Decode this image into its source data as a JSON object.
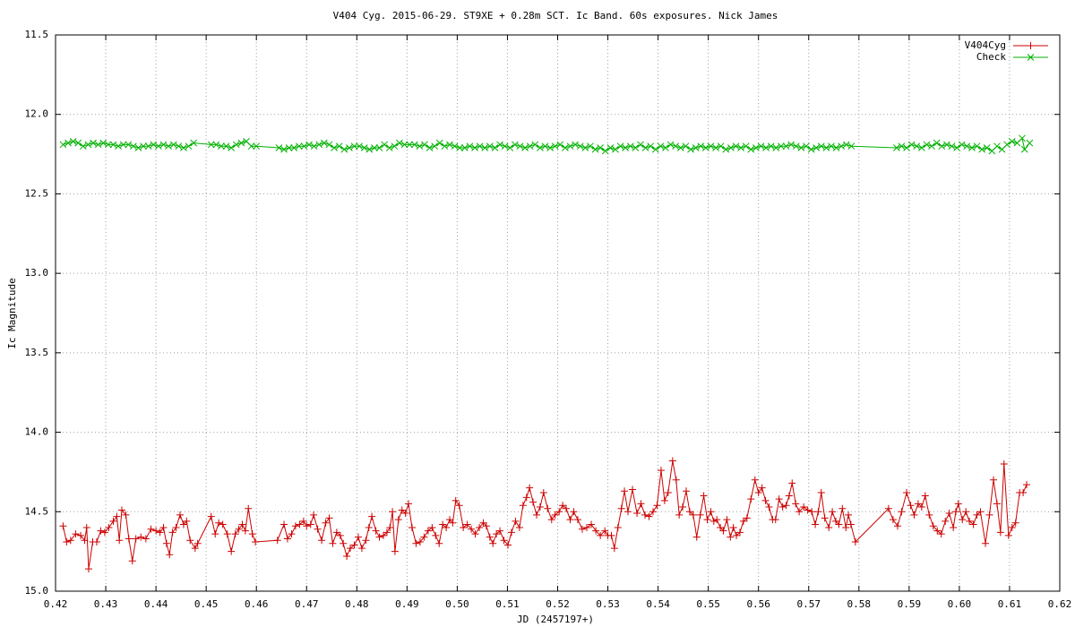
{
  "chart_data": {
    "type": "line",
    "title": "V404 Cyg. 2015-06-29. ST9XE + 0.28m SCT. Ic Band. 60s exposures. Nick James",
    "x_label": "JD (2457197+)",
    "y_label": "Ic Magnitude",
    "xlim": [
      0.42,
      0.62
    ],
    "ylim": [
      15.0,
      11.5
    ],
    "xticks": [
      0.42,
      0.43,
      0.44,
      0.45,
      0.46,
      0.47,
      0.48,
      0.49,
      {
        "value": 0.5,
        "label": "0.50"
      },
      0.51,
      0.52,
      0.53,
      0.54,
      0.55,
      0.56,
      0.57,
      0.58,
      0.59,
      {
        "value": 0.6,
        "label": "0.60"
      },
      0.61,
      0.62
    ],
    "yticks": [
      11.5,
      {
        "value": 12.0,
        "label": "12.0"
      },
      12.5,
      {
        "value": 13.0,
        "label": "13.0"
      },
      13.5,
      {
        "value": 14.0,
        "label": "14.0"
      },
      14.5,
      {
        "value": 15.0,
        "label": "15.0"
      }
    ],
    "grid": true,
    "legend": "top-right",
    "series": [
      {
        "name": "V404Cyg",
        "color": "#cc0000",
        "marker": "plus",
        "x": [
          0.4215,
          0.4222,
          0.423,
          0.424,
          0.425,
          0.4258,
          0.4262,
          0.4266,
          0.4274,
          0.4282,
          0.429,
          0.4298,
          0.4306,
          0.4315,
          0.4322,
          0.4327,
          0.4332,
          0.434,
          0.4346,
          0.4353,
          0.436,
          0.437,
          0.438,
          0.439,
          0.44,
          0.4408,
          0.4415,
          0.4421,
          0.4427,
          0.4433,
          0.444,
          0.4448,
          0.4455,
          0.4461,
          0.4468,
          0.4478,
          0.4483,
          0.451,
          0.4518,
          0.4525,
          0.4533,
          0.4542,
          0.455,
          0.4558,
          0.4565,
          0.4572,
          0.4578,
          0.4584,
          0.4592,
          0.4598,
          0.4642,
          0.4655,
          0.4662,
          0.467,
          0.4678,
          0.4686,
          0.4694,
          0.47,
          0.4708,
          0.4714,
          0.4722,
          0.473,
          0.4738,
          0.4745,
          0.4752,
          0.476,
          0.4767,
          0.4773,
          0.478,
          0.4787,
          0.4795,
          0.4803,
          0.481,
          0.4818,
          0.4824,
          0.483,
          0.4838,
          0.4845,
          0.4853,
          0.486,
          0.4866,
          0.4871,
          0.4876,
          0.4883,
          0.489,
          0.4897,
          0.4903,
          0.491,
          0.4918,
          0.4926,
          0.4934,
          0.4942,
          0.495,
          0.4957,
          0.4964,
          0.4971,
          0.4978,
          0.4985,
          0.4991,
          0.4997,
          0.5004,
          0.5012,
          0.502,
          0.5028,
          0.5036,
          0.5044,
          0.5052,
          0.5058,
          0.5065,
          0.5071,
          0.5078,
          0.5085,
          0.5093,
          0.5101,
          0.5108,
          0.5116,
          0.5124,
          0.5131,
          0.5138,
          0.5144,
          0.5151,
          0.5158,
          0.5165,
          0.5172,
          0.518,
          0.5188,
          0.5195,
          0.5203,
          0.521,
          0.5217,
          0.5225,
          0.5232,
          0.524,
          0.5249,
          0.5258,
          0.5267,
          0.5276,
          0.5285,
          0.5294,
          0.53,
          0.5307,
          0.5313,
          0.532,
          0.5327,
          0.5333,
          0.534,
          0.5349,
          0.5358,
          0.5366,
          0.5374,
          0.5382,
          0.539,
          0.5398,
          0.5406,
          0.5413,
          0.542,
          0.5429,
          0.5436,
          0.5442,
          0.5449,
          0.5456,
          0.5463,
          0.547,
          0.5477,
          0.5484,
          0.5491,
          0.5498,
          0.5505,
          0.5511,
          0.5517,
          0.5524,
          0.553,
          0.5537,
          0.5544,
          0.555,
          0.5556,
          0.5563,
          0.557,
          0.5577,
          0.5585,
          0.5593,
          0.56,
          0.5607,
          0.5614,
          0.5621,
          0.5628,
          0.5634,
          0.5641,
          0.5648,
          0.5655,
          0.5661,
          0.5667,
          0.5674,
          0.5681,
          0.569,
          0.5698,
          0.5706,
          0.5713,
          0.5719,
          0.5725,
          0.5732,
          0.574,
          0.5747,
          0.5754,
          0.576,
          0.5767,
          0.5774,
          0.5779,
          0.5784,
          0.5793,
          0.5859,
          0.5868,
          0.5877,
          0.5885,
          0.5895,
          0.5903,
          0.591,
          0.5918,
          0.5925,
          0.5932,
          0.594,
          0.5948,
          0.5956,
          0.5964,
          0.5972,
          0.598,
          0.5988,
          0.5993,
          0.5998,
          0.6006,
          0.6013,
          0.602,
          0.6028,
          0.6035,
          0.6042,
          0.6052,
          0.606,
          0.6068,
          0.6075,
          0.6082,
          0.6089,
          0.6098,
          0.6105,
          0.6112,
          0.612,
          0.6127,
          0.6134
        ],
        "values": [
          14.59,
          14.69,
          14.68,
          14.64,
          14.65,
          14.68,
          14.6,
          14.86,
          14.69,
          14.69,
          14.62,
          14.63,
          14.6,
          14.56,
          14.53,
          14.68,
          14.49,
          14.52,
          14.67,
          14.81,
          14.67,
          14.66,
          14.67,
          14.61,
          14.62,
          14.63,
          14.6,
          14.7,
          14.77,
          14.63,
          14.6,
          14.52,
          14.58,
          14.56,
          14.68,
          14.73,
          14.7,
          14.53,
          14.64,
          14.57,
          14.58,
          14.64,
          14.75,
          14.64,
          14.61,
          14.58,
          14.62,
          14.48,
          14.64,
          14.69,
          14.68,
          14.58,
          14.67,
          14.64,
          14.59,
          14.58,
          14.56,
          14.59,
          14.58,
          14.52,
          14.61,
          14.68,
          14.57,
          14.54,
          14.7,
          14.63,
          14.65,
          14.7,
          14.78,
          14.73,
          14.71,
          14.66,
          14.73,
          14.68,
          14.6,
          14.53,
          14.62,
          14.66,
          14.65,
          14.63,
          14.6,
          14.5,
          14.75,
          14.55,
          14.49,
          14.51,
          14.45,
          14.6,
          14.7,
          14.69,
          14.66,
          14.62,
          14.6,
          14.65,
          14.7,
          14.58,
          14.6,
          14.55,
          14.57,
          14.43,
          14.46,
          14.6,
          14.58,
          14.61,
          14.64,
          14.6,
          14.57,
          14.59,
          14.66,
          14.7,
          14.64,
          14.62,
          14.68,
          14.71,
          14.63,
          14.56,
          14.6,
          14.46,
          14.41,
          14.35,
          14.44,
          14.52,
          14.47,
          14.38,
          14.48,
          14.55,
          14.52,
          14.5,
          14.46,
          14.48,
          14.55,
          14.5,
          14.55,
          14.61,
          14.6,
          14.58,
          14.62,
          14.65,
          14.62,
          14.65,
          14.65,
          14.73,
          14.6,
          14.48,
          14.37,
          14.5,
          14.36,
          14.51,
          14.45,
          14.52,
          14.53,
          14.5,
          14.46,
          14.24,
          14.43,
          14.38,
          14.18,
          14.3,
          14.52,
          14.47,
          14.37,
          14.5,
          14.52,
          14.66,
          14.52,
          14.4,
          14.55,
          14.5,
          14.56,
          14.55,
          14.6,
          14.62,
          14.55,
          14.66,
          14.6,
          14.65,
          14.63,
          14.56,
          14.54,
          14.42,
          14.3,
          14.38,
          14.35,
          14.43,
          14.47,
          14.55,
          14.55,
          14.42,
          14.47,
          14.46,
          14.4,
          14.32,
          14.45,
          14.5,
          14.47,
          14.49,
          14.5,
          14.58,
          14.5,
          14.38,
          14.54,
          14.6,
          14.5,
          14.56,
          14.58,
          14.48,
          14.6,
          14.52,
          14.58,
          14.69,
          14.48,
          14.55,
          14.59,
          14.5,
          14.38,
          14.46,
          14.52,
          14.45,
          14.47,
          14.4,
          14.52,
          14.59,
          14.62,
          14.64,
          14.56,
          14.51,
          14.6,
          14.5,
          14.45,
          14.55,
          14.5,
          14.56,
          14.58,
          14.52,
          14.5,
          14.7,
          14.52,
          14.3,
          14.45,
          14.63,
          14.2,
          14.65,
          14.6,
          14.57,
          14.38,
          14.38,
          14.33
        ]
      },
      {
        "name": "Check",
        "color": "#00b000",
        "marker": "cross",
        "x": [
          0.4215,
          0.4225,
          0.4235,
          0.4245,
          0.4255,
          0.4265,
          0.4275,
          0.4285,
          0.4295,
          0.4305,
          0.4315,
          0.4325,
          0.4335,
          0.4345,
          0.4355,
          0.4365,
          0.4375,
          0.4385,
          0.4395,
          0.4405,
          0.4415,
          0.4425,
          0.4435,
          0.4445,
          0.4455,
          0.4465,
          0.4475,
          0.451,
          0.452,
          0.453,
          0.454,
          0.455,
          0.456,
          0.457,
          0.458,
          0.459,
          0.46,
          0.4645,
          0.4655,
          0.4665,
          0.4675,
          0.4685,
          0.4695,
          0.4705,
          0.4715,
          0.4725,
          0.4735,
          0.4745,
          0.4755,
          0.4765,
          0.4775,
          0.4785,
          0.4795,
          0.4805,
          0.4815,
          0.4825,
          0.4835,
          0.4845,
          0.4855,
          0.4865,
          0.4875,
          0.4885,
          0.4895,
          0.4905,
          0.4915,
          0.4925,
          0.4935,
          0.4945,
          0.4955,
          0.4965,
          0.4975,
          0.4985,
          0.4995,
          0.5005,
          0.5015,
          0.5025,
          0.5035,
          0.5045,
          0.5055,
          0.5065,
          0.5075,
          0.5085,
          0.5095,
          0.5105,
          0.5115,
          0.5125,
          0.5135,
          0.5145,
          0.5155,
          0.5165,
          0.5175,
          0.5185,
          0.5195,
          0.5205,
          0.5215,
          0.5225,
          0.5235,
          0.5245,
          0.5255,
          0.5265,
          0.5275,
          0.5285,
          0.5295,
          0.5305,
          0.5315,
          0.5325,
          0.5335,
          0.5345,
          0.5355,
          0.5365,
          0.5375,
          0.5385,
          0.5395,
          0.5405,
          0.5415,
          0.5425,
          0.5435,
          0.5445,
          0.5455,
          0.5465,
          0.5475,
          0.5485,
          0.5495,
          0.5505,
          0.5515,
          0.5525,
          0.5535,
          0.5545,
          0.5555,
          0.5565,
          0.5575,
          0.5585,
          0.5595,
          0.5605,
          0.5615,
          0.5625,
          0.5635,
          0.5645,
          0.5655,
          0.5665,
          0.5675,
          0.5685,
          0.5695,
          0.5705,
          0.5715,
          0.5725,
          0.5735,
          0.5745,
          0.5755,
          0.5765,
          0.5775,
          0.5785,
          0.5875,
          0.5885,
          0.5895,
          0.5905,
          0.5915,
          0.5925,
          0.5935,
          0.5945,
          0.5955,
          0.5965,
          0.5975,
          0.5985,
          0.5995,
          0.6005,
          0.6015,
          0.6025,
          0.6035,
          0.6045,
          0.6055,
          0.6065,
          0.6075,
          0.6085,
          0.6095,
          0.6105,
          0.6115,
          0.6125,
          0.613,
          0.614
        ],
        "values": [
          12.19,
          12.18,
          12.17,
          12.18,
          12.2,
          12.19,
          12.18,
          12.19,
          12.18,
          12.19,
          12.19,
          12.2,
          12.19,
          12.19,
          12.2,
          12.21,
          12.2,
          12.2,
          12.19,
          12.2,
          12.19,
          12.2,
          12.19,
          12.2,
          12.21,
          12.2,
          12.18,
          12.19,
          12.19,
          12.2,
          12.2,
          12.21,
          12.19,
          12.18,
          12.17,
          12.2,
          12.2,
          12.21,
          12.22,
          12.21,
          12.21,
          12.2,
          12.2,
          12.19,
          12.2,
          12.19,
          12.18,
          12.19,
          12.21,
          12.2,
          12.22,
          12.21,
          12.2,
          12.2,
          12.21,
          12.22,
          12.21,
          12.21,
          12.19,
          12.21,
          12.2,
          12.18,
          12.19,
          12.19,
          12.19,
          12.2,
          12.19,
          12.21,
          12.2,
          12.18,
          12.2,
          12.19,
          12.2,
          12.21,
          12.21,
          12.2,
          12.21,
          12.2,
          12.21,
          12.2,
          12.21,
          12.19,
          12.2,
          12.21,
          12.19,
          12.2,
          12.21,
          12.2,
          12.19,
          12.21,
          12.2,
          12.21,
          12.2,
          12.19,
          12.21,
          12.2,
          12.19,
          12.2,
          12.21,
          12.2,
          12.22,
          12.21,
          12.23,
          12.21,
          12.22,
          12.2,
          12.21,
          12.2,
          12.21,
          12.19,
          12.21,
          12.2,
          12.22,
          12.2,
          12.21,
          12.19,
          12.2,
          12.21,
          12.2,
          12.22,
          12.21,
          12.2,
          12.21,
          12.2,
          12.21,
          12.2,
          12.22,
          12.21,
          12.2,
          12.21,
          12.2,
          12.22,
          12.21,
          12.2,
          12.21,
          12.2,
          12.21,
          12.2,
          12.2,
          12.19,
          12.2,
          12.21,
          12.2,
          12.22,
          12.21,
          12.2,
          12.21,
          12.2,
          12.21,
          12.2,
          12.19,
          12.2,
          12.21,
          12.2,
          12.21,
          12.19,
          12.2,
          12.21,
          12.19,
          12.2,
          12.18,
          12.2,
          12.19,
          12.2,
          12.21,
          12.19,
          12.2,
          12.21,
          12.2,
          12.22,
          12.21,
          12.23,
          12.2,
          12.22,
          12.19,
          12.17,
          12.18,
          12.15,
          12.22,
          12.18
        ]
      }
    ]
  }
}
